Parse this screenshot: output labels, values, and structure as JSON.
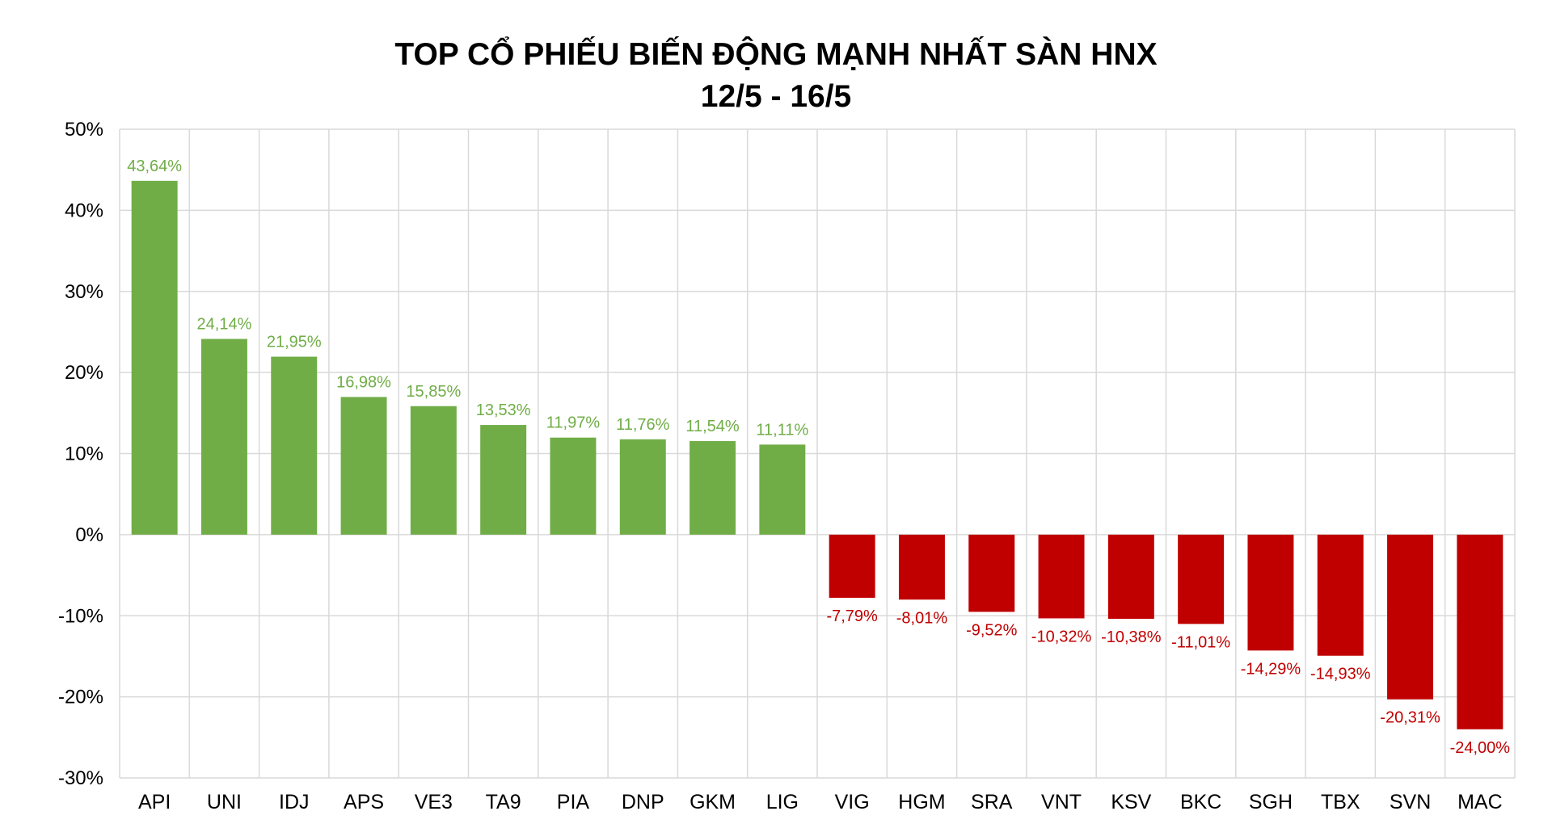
{
  "chart_data": {
    "type": "bar",
    "title": "TOP CỔ PHIẾU BIẾN ĐỘNG MẠNH NHẤT SÀN HNX",
    "subtitle": "12/5 - 16/5",
    "xlabel": "",
    "ylabel": "",
    "ylim": [
      -30,
      50
    ],
    "yticks": [
      50,
      40,
      30,
      20,
      10,
      0,
      -10,
      -20,
      -30
    ],
    "ytick_labels": [
      "50%",
      "40%",
      "30%",
      "20%",
      "10%",
      "0%",
      "-10%",
      "-20%",
      "-30%"
    ],
    "grid": true,
    "legend": "none",
    "colors": {
      "positive": "#70AD47",
      "negative": "#C00000",
      "positive_label": "#70AD47",
      "negative_label": "#C00000",
      "grid": "#D9D9D9"
    },
    "categories": [
      "API",
      "UNI",
      "IDJ",
      "APS",
      "VE3",
      "TA9",
      "PIA",
      "DNP",
      "GKM",
      "LIG",
      "VIG",
      "HGM",
      "SRA",
      "VNT",
      "KSV",
      "BKC",
      "SGH",
      "TBX",
      "SVN",
      "MAC"
    ],
    "values": [
      43.64,
      24.14,
      21.95,
      16.98,
      15.85,
      13.53,
      11.97,
      11.76,
      11.54,
      11.11,
      -7.79,
      -8.01,
      -9.52,
      -10.32,
      -10.38,
      -11.01,
      -14.29,
      -14.93,
      -20.31,
      -24.0
    ],
    "data_labels": [
      "43,64%",
      "24,14%",
      "21,95%",
      "16,98%",
      "15,85%",
      "13,53%",
      "11,97%",
      "11,76%",
      "11,54%",
      "11,11%",
      "-7,79%",
      "-8,01%",
      "-9,52%",
      "-10,32%",
      "-10,38%",
      "-11,01%",
      "-14,29%",
      "-14,93%",
      "-20,31%",
      "-24,00%"
    ]
  }
}
